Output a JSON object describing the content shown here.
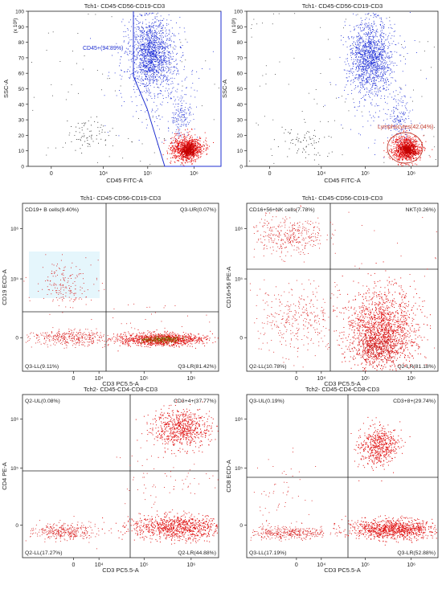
{
  "figure": {
    "panels": [
      {
        "id": "p1",
        "title": "Tch1- CD45-CD56-CD19-CD3",
        "xlabel": "CD45 FITC-A",
        "ylabel": "SSC-A",
        "yunit": "(x 10³)",
        "xticks": [
          "0",
          "10⁴",
          "10⁵",
          "10⁶"
        ],
        "yticks": [
          "0",
          "10",
          "20",
          "30",
          "40",
          "50",
          "60",
          "70",
          "80",
          "90",
          "100"
        ],
        "gate_label": "CD45+(94.89%)",
        "gate_color": "#1f2fd0"
      },
      {
        "id": "p2",
        "title": "Tch1- CD45-CD56-CD19-CD3",
        "xlabel": "CD45 FITC-A",
        "ylabel": "SSC-A",
        "yunit": "(x 10³)",
        "xticks": [
          "0",
          "10⁴",
          "10⁵",
          "10⁶"
        ],
        "yticks": [
          "0",
          "10",
          "20",
          "30",
          "40",
          "50",
          "60",
          "70",
          "80",
          "90",
          "100"
        ],
        "gate_label": "Lymphocytes(42.04%)",
        "gate_color": "#c0392b"
      },
      {
        "id": "p3",
        "title": "Tch1- CD45-CD56-CD19-CD3",
        "xlabel": "CD3 PC5.5-A",
        "ylabel": "CD19 ECD-A",
        "xticks": [
          "0",
          "10⁴",
          "10⁵",
          "10⁶"
        ],
        "yticks": [
          "0",
          "10⁵",
          "10⁶"
        ],
        "quadrants": {
          "UL": "CD19+ B cells(9.40%)",
          "UR": "Q3-UR(0.07%)",
          "LL": "Q3-LL(9.11%)",
          "LR": "Q3-LR(81.42%)"
        }
      },
      {
        "id": "p4",
        "title": "Tch1- CD45-CD56-CD19-CD3",
        "xlabel": "CD3 PC5.5-A",
        "ylabel": "CD16+56 PE-A",
        "xticks": [
          "0",
          "10⁴",
          "10⁵",
          "10⁶"
        ],
        "yticks": [
          "0",
          "10⁵",
          "10⁶"
        ],
        "quadrants": {
          "UL": "CD16+56+NK cells(7.78%)",
          "UR": "NKT(0.26%)",
          "LL": "Q2-LL(10.78%)",
          "LR": "Q2-LR(81.18%)"
        }
      },
      {
        "id": "p5",
        "title": "Tch2- CD45-CD4-CD8-CD3",
        "xlabel": "CD3 PC5.5-A",
        "ylabel": "CD4 PE-A",
        "xticks": [
          "0",
          "10⁴",
          "10⁵",
          "10⁶"
        ],
        "yticks": [
          "0",
          "10⁵",
          "10⁶"
        ],
        "quadrants": {
          "UL": "Q2-UL(0.08%)",
          "UR": "CD3+4+(37.77%)",
          "LL": "Q2-LL(17.27%)",
          "LR": "Q2-LR(44.88%)"
        }
      },
      {
        "id": "p6",
        "title": "Tch2- CD45-CD4-CD8-CD3",
        "xlabel": "CD3 PC5.5-A",
        "ylabel": "CD8 ECD-A",
        "xticks": [
          "0",
          "10⁴",
          "10⁵",
          "10⁶"
        ],
        "yticks": [
          "0",
          "10⁵",
          "10⁶"
        ],
        "quadrants": {
          "UL": "Q3-UL(0.19%)",
          "UR": "CD3+8+(29.74%)",
          "LL": "Q3-LL(17.19%)",
          "LR": "Q3-LR(52.88%)"
        }
      }
    ]
  },
  "chart_data": [
    {
      "type": "scatter",
      "title": "Tch1- CD45-CD56-CD19-CD3",
      "xlabel": "CD45 FITC-A",
      "ylabel": "SSC-A (x 10³)",
      "x_scale": "log",
      "ylim": [
        0,
        100
      ],
      "populations": [
        {
          "color": "blue",
          "x_center": 80000,
          "y_center": 70,
          "count": "dense"
        },
        {
          "color": "red",
          "x_center": 500000,
          "y_center": 10,
          "count": "dense"
        },
        {
          "color": "black",
          "x_center": 8000,
          "y_center": 12,
          "count": "sparse"
        }
      ],
      "gates": [
        {
          "label": "CD45+(94.89%)",
          "percent": 94.89,
          "shape": "polygon"
        }
      ]
    },
    {
      "type": "scatter",
      "title": "Tch1- CD45-CD56-CD19-CD3",
      "xlabel": "CD45 FITC-A",
      "ylabel": "SSC-A (x 10³)",
      "x_scale": "log",
      "ylim": [
        0,
        100
      ],
      "gates": [
        {
          "label": "Lymphocytes(42.04%)",
          "percent": 42.04,
          "shape": "ellipse"
        }
      ]
    },
    {
      "type": "scatter",
      "title": "Tch1- CD45-CD56-CD19-CD3",
      "xlabel": "CD3 PC5.5-A",
      "ylabel": "CD19 ECD-A",
      "quadrants": [
        {
          "label": "CD19+ B cells",
          "percent": 9.4
        },
        {
          "label": "Q3-UR",
          "percent": 0.07
        },
        {
          "label": "Q3-LL",
          "percent": 9.11
        },
        {
          "label": "Q3-LR",
          "percent": 81.42
        }
      ]
    },
    {
      "type": "scatter",
      "title": "Tch1- CD45-CD56-CD19-CD3",
      "xlabel": "CD3 PC5.5-A",
      "ylabel": "CD16+56 PE-A",
      "quadrants": [
        {
          "label": "CD16+56+NK cells",
          "percent": 7.78
        },
        {
          "label": "NKT",
          "percent": 0.26
        },
        {
          "label": "Q2-LL",
          "percent": 10.78
        },
        {
          "label": "Q2-LR",
          "percent": 81.18
        }
      ]
    },
    {
      "type": "scatter",
      "title": "Tch2- CD45-CD4-CD8-CD3",
      "xlabel": "CD3 PC5.5-A",
      "ylabel": "CD4 PE-A",
      "quadrants": [
        {
          "label": "Q2-UL",
          "percent": 0.08
        },
        {
          "label": "CD3+4+",
          "percent": 37.77
        },
        {
          "label": "Q2-LL",
          "percent": 17.27
        },
        {
          "label": "Q2-LR",
          "percent": 44.88
        }
      ]
    },
    {
      "type": "scatter",
      "title": "Tch2- CD45-CD4-CD8-CD3",
      "xlabel": "CD3 PC5.5-A",
      "ylabel": "CD8 ECD-A",
      "quadrants": [
        {
          "label": "Q3-UL",
          "percent": 0.19
        },
        {
          "label": "CD3+8+",
          "percent": 29.74
        },
        {
          "label": "Q3-LL",
          "percent": 17.19
        },
        {
          "label": "Q3-LR",
          "percent": 52.88
        }
      ]
    }
  ]
}
